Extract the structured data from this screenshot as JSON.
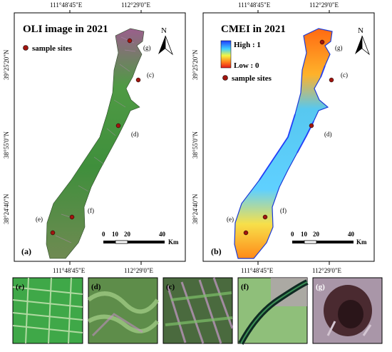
{
  "panels": [
    {
      "id": "a",
      "title": "OLI image in 2021",
      "panel_label": "(a)",
      "legend": {
        "sample_sites_label": "sample sites"
      },
      "top_ticks": [
        "111°48'45\"E",
        "112°29'0\"E"
      ],
      "left_ticks": [
        "39°25'20\"N",
        "38°55'0\"N",
        "38°24'40\"N"
      ],
      "north_label": "N",
      "scalebar": {
        "ticks": [
          "0",
          "10",
          "20",
          "40"
        ],
        "unit": "Km"
      },
      "site_labels": [
        "(g)",
        "(c)",
        "(d)",
        "(f)",
        "(e)"
      ]
    },
    {
      "id": "b",
      "title": "CMEI in 2021",
      "panel_label": "(b)",
      "legend": {
        "high_label": "High : 1",
        "low_label": "Low : 0",
        "sample_sites_label": "sample sites",
        "colors": [
          "#1f3bff",
          "#3fd0ff",
          "#f5f542",
          "#ff7a1a",
          "#e11a1a"
        ]
      },
      "top_ticks": [
        "111°48'45\"E",
        "112°29'0\"E"
      ],
      "left_ticks": [
        "39°25'20\"N",
        "38°55'0\"N",
        "38°24'40\"N"
      ],
      "north_label": "N",
      "scalebar": {
        "ticks": [
          "0",
          "10",
          "20",
          "40"
        ],
        "unit": "Km"
      },
      "site_labels": [
        "(g)",
        "(c)",
        "(d)",
        "(f)",
        "(e)"
      ]
    }
  ],
  "bottom_ticks": [
    "111°48'45\"E",
    "112°29'0\"E"
  ],
  "thumbnails": [
    {
      "label": "(e)"
    },
    {
      "label": "(d)"
    },
    {
      "label": "(c)"
    },
    {
      "label": "(f)"
    },
    {
      "label": "(g)"
    }
  ]
}
